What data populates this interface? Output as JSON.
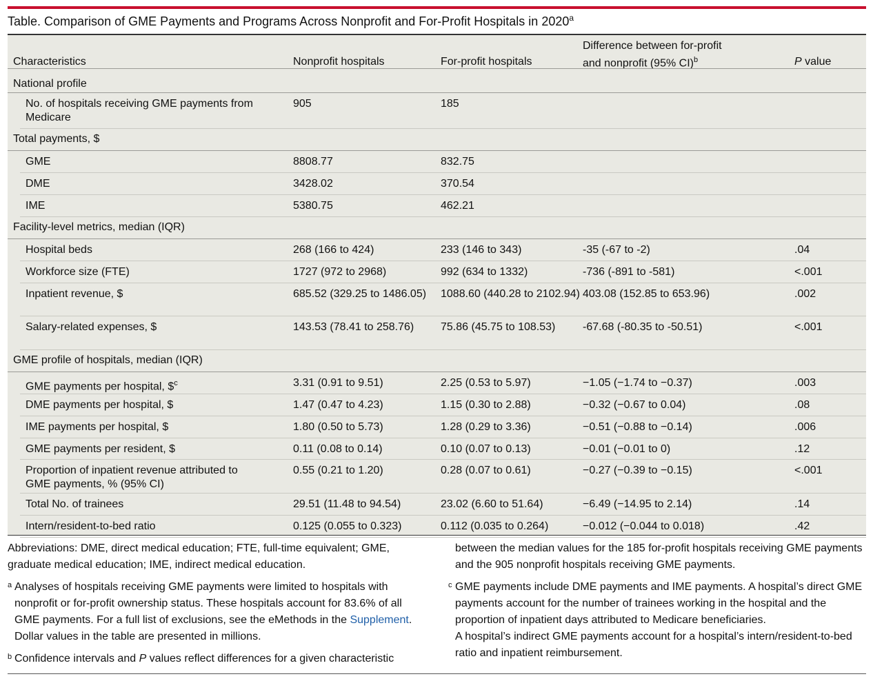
{
  "caption": {
    "title": "Table. Comparison of GME Payments and Programs Across Nonprofit and For-Profit Hospitals in 2020",
    "mark": "a"
  },
  "headers": {
    "c1": "Characteristics",
    "c2": "Nonprofit hospitals",
    "c3": "For-profit hospitals",
    "c4_line1": "Difference between for-profit",
    "c4_line2": "and nonprofit (95% CI)",
    "c4_mark": "b",
    "c5_italic": "P",
    "c5_rest": " value"
  },
  "rows": [
    {
      "label": "National profile"
    },
    {
      "label": "No. of hospitals receiving GME payments from Medicare",
      "np": "905",
      "fp": "185",
      "diff": "",
      "p": ""
    },
    {
      "label": "Total payments, $"
    },
    {
      "label": "GME",
      "np": "8808.77",
      "fp": "832.75",
      "diff": "",
      "p": ""
    },
    {
      "label": "DME",
      "np": "3428.02",
      "fp": "370.54",
      "diff": "",
      "p": ""
    },
    {
      "label": "IME",
      "np": "5380.75",
      "fp": "462.21",
      "diff": "",
      "p": ""
    },
    {
      "label": "Facility-level metrics, median (IQR)"
    },
    {
      "label": "Hospital beds",
      "np": "268 (166 to 424)",
      "fp": "233 (146 to 343)",
      "diff": "-35 (-67 to -2)",
      "p": ".04"
    },
    {
      "label": "Workforce size (FTE)",
      "np": "1727 (972 to 2968)",
      "fp": "992 (634 to 1332)",
      "diff": "-736 (-891 to -581)",
      "p": "<.001"
    },
    {
      "label": "Inpatient revenue, $",
      "np": "685.52 (329.25 to 1486.05)",
      "fp": "1088.60 (440.28 to 2102.94)",
      "diff": "403.08 (152.85 to 653.96)",
      "p": ".002"
    },
    {
      "label": "Salary-related expenses, $",
      "np": "143.53 (78.41 to 258.76)",
      "fp": "75.86 (45.75 to 108.53)",
      "diff": "-67.68 (-80.35 to -50.51)",
      "p": "<.001"
    },
    {
      "label": "GME profile of hospitals, median (IQR)"
    },
    {
      "label": "GME payments per hospital, $",
      "mark": "c",
      "np": "3.31 (0.91 to 9.51)",
      "fp": "2.25 (0.53 to 5.97)",
      "diff": "−1.05 (−1.74 to −0.37)",
      "p": ".003"
    },
    {
      "label": "DME payments per hospital, $",
      "np": "1.47 (0.47 to 4.23)",
      "fp": "1.15 (0.30 to 2.88)",
      "diff": "−0.32 (−0.67 to 0.04)",
      "p": ".08"
    },
    {
      "label": "IME payments per hospital, $",
      "np": "1.80 (0.50 to 5.73)",
      "fp": "1.28 (0.29 to 3.36)",
      "diff": "−0.51 (−0.88 to −0.14)",
      "p": ".006"
    },
    {
      "label": "GME payments per resident, $",
      "np": "0.11 (0.08 to 0.14)",
      "fp": "0.10 (0.07 to 0.13)",
      "diff": "−0.01 (−0.01 to 0)",
      "p": ".12"
    },
    {
      "label": "Proportion of inpatient revenue attributed to GME payments, % (95% CI)",
      "np": "0.55 (0.21 to 1.20)",
      "fp": "0.28 (0.07 to 0.61)",
      "diff": "−0.27 (−0.39 to −0.15)",
      "p": "<.001"
    },
    {
      "label": "Total No. of trainees",
      "np": "29.51 (11.48 to 94.54)",
      "fp": "23.02 (6.60 to 51.64)",
      "diff": "−6.49 (−14.95 to 2.14)",
      "p": ".14"
    },
    {
      "label": "Intern/resident-to-bed ratio",
      "np": "0.125 (0.055 to 0.323)",
      "fp": "0.112 (0.035 to 0.264)",
      "diff": "−0.012 (−0.044 to 0.018)",
      "p": ".42"
    }
  ],
  "notes": {
    "abbrev": "Abbreviations: DME, direct medical education; FTE, full-time equivalent; GME, graduate medical education; IME, indirect medical education.",
    "a_mark": "a",
    "a_text_before": "Analyses of hospitals receiving GME payments were limited to hospitals with nonprofit or for-profit ownership status. These hospitals account for 83.6% of all GME payments. For a full list of exclusions, see the eMethods in the ",
    "a_link": "Supplement",
    "a_text_after": ". Dollar values in the table are presented in millions.",
    "b_mark": "b",
    "b_text_1": "Confidence intervals and ",
    "b_text_italic": "P",
    "b_text_2": " values reflect differences for a given characteristic",
    "b_text_cont": "between the median values for the 185 for-profit hospitals receiving GME payments and the 905 nonprofit hospitals receiving GME payments.",
    "c_mark": "c",
    "c_text_1": "GME payments include DME payments and IME payments. A hospital’s direct GME payments account for the number of trainees working in the hospital and the proportion of inpatient days attributed to Medicare beneficiaries.",
    "c_text_2": "A hospital’s indirect GME payments account for a hospital’s intern/resident-to-bed ratio and inpatient reimbursement."
  }
}
